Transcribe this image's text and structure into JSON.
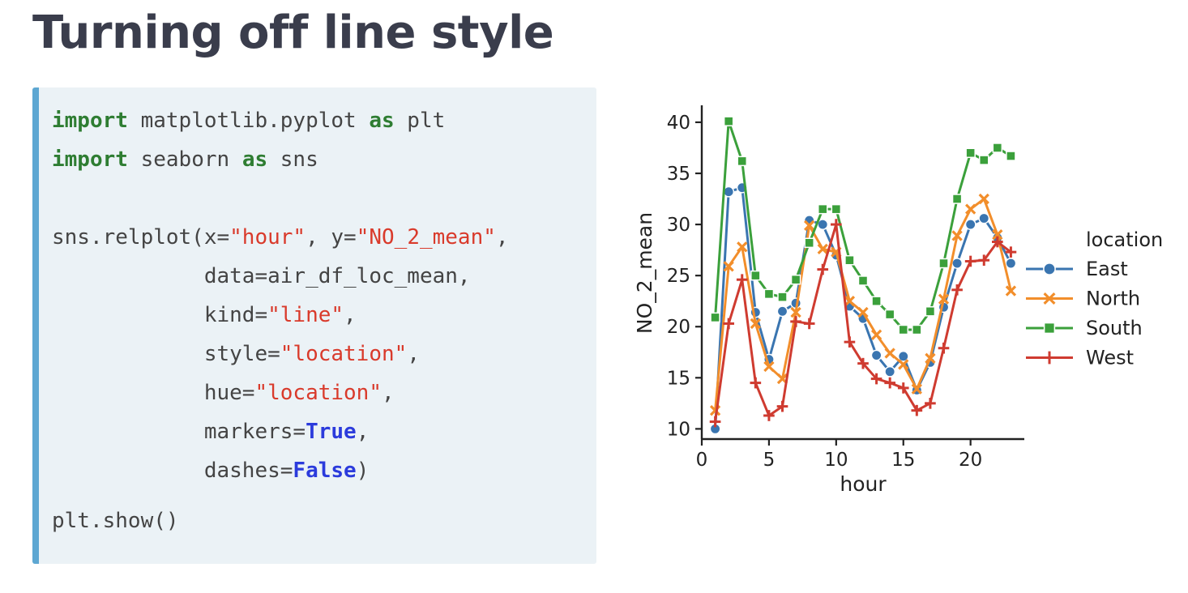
{
  "title": "Turning off line style",
  "code": {
    "kw_import": "import",
    "kw_as": "as",
    "l1_module": " matplotlib.pyplot ",
    "l1_alias": " plt",
    "l2_module": " seaborn ",
    "l2_alias": " sns",
    "l4_a": "sns.relplot(x=",
    "l4_str1": "\"hour\"",
    "l4_b": ", y=",
    "l4_str2": "\"NO_2_mean\"",
    "l4_c": ",",
    "l5": "            data=air_df_loc_mean,",
    "l6_a": "            kind=",
    "l6_str": "\"line\"",
    "l6_b": ",",
    "l7_a": "            style=",
    "l7_str": "\"location\"",
    "l7_b": ",",
    "l8_a": "            hue=",
    "l8_str": "\"location\"",
    "l8_b": ",",
    "l9_a": "            markers=",
    "l9_bool": "True",
    "l9_b": ",",
    "l10_a": "            dashes=",
    "l10_bool": "False",
    "l10_b": ")",
    "l12": "plt.show()"
  },
  "colors": {
    "East": "#3a75b0",
    "North": "#f28e2b",
    "South": "#3ba03b",
    "West": "#cf3b30"
  },
  "chart_data": {
    "type": "line",
    "xlabel": "hour",
    "ylabel": "NO_2_mean",
    "xlim": [
      0,
      24
    ],
    "ylim": [
      9,
      41.5
    ],
    "xticks": [
      0,
      5,
      10,
      15,
      20
    ],
    "yticks": [
      10,
      15,
      20,
      25,
      30,
      35,
      40
    ],
    "x": [
      1,
      2,
      3,
      4,
      5,
      6,
      7,
      8,
      9,
      10,
      11,
      12,
      13,
      14,
      15,
      16,
      17,
      18,
      19,
      20,
      21,
      22,
      23
    ],
    "legend_title": "location",
    "legend_position": "right",
    "series": [
      {
        "name": "East",
        "marker": "circle",
        "values": [
          10.0,
          33.2,
          33.6,
          21.4,
          16.8,
          21.5,
          22.3,
          30.4,
          30.0,
          27.0,
          22.0,
          20.8,
          17.2,
          15.6,
          17.1,
          13.8,
          16.5,
          21.9,
          26.2,
          30.0,
          30.6,
          28.7,
          26.2
        ]
      },
      {
        "name": "North",
        "marker": "x",
        "values": [
          11.8,
          25.9,
          27.8,
          20.3,
          16.1,
          14.9,
          21.4,
          29.9,
          27.6,
          27.3,
          22.5,
          21.4,
          19.2,
          17.4,
          16.3,
          13.9,
          16.9,
          22.7,
          28.9,
          31.5,
          32.5,
          29.0,
          23.5
        ]
      },
      {
        "name": "South",
        "marker": "square",
        "values": [
          20.9,
          40.1,
          36.2,
          25.0,
          23.2,
          22.9,
          24.6,
          28.2,
          31.5,
          31.5,
          26.5,
          24.5,
          22.5,
          21.2,
          19.7,
          19.7,
          21.5,
          26.2,
          32.5,
          37.0,
          36.3,
          37.5,
          36.7
        ]
      },
      {
        "name": "West",
        "marker": "plus",
        "values": [
          10.7,
          20.3,
          24.6,
          14.5,
          11.3,
          12.2,
          20.5,
          20.3,
          25.6,
          30.0,
          18.5,
          16.4,
          14.9,
          14.5,
          14.0,
          11.8,
          12.5,
          17.9,
          23.6,
          26.4,
          26.5,
          28.3,
          27.3
        ]
      }
    ]
  }
}
